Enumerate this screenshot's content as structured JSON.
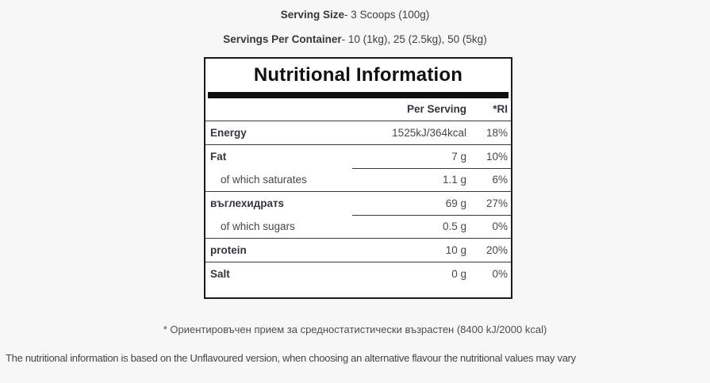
{
  "intro": {
    "serving_size_label": "Serving Size",
    "serving_size_value": "- 3 Scoops (100g)",
    "servings_per_container_label": "Servings Per Container",
    "servings_per_container_value": "- 10 (1kg), 25 (2.5kg), 50 (5kg)"
  },
  "table": {
    "title": "Nutritional Information",
    "columns": {
      "per_serving": "Per Serving",
      "ri": "*RI"
    },
    "rows": [
      {
        "label": "Energy",
        "per_serving": "1525kJ/364kcal",
        "ri": "18%",
        "bold": true,
        "sub": false
      },
      {
        "label": "Fat",
        "per_serving": "7 g",
        "ri": "10%",
        "bold": true,
        "sub": false
      },
      {
        "label": "of which saturates",
        "per_serving": "1.1 g",
        "ri": "6%",
        "bold": false,
        "sub": true
      },
      {
        "label": "въглехидратs",
        "per_serving": "69 g",
        "ri": "27%",
        "bold": true,
        "sub": false
      },
      {
        "label": "of which sugars",
        "per_serving": "0.5 g",
        "ri": "0%",
        "bold": false,
        "sub": true
      },
      {
        "label": "protein",
        "per_serving": "10 g",
        "ri": "20%",
        "bold": true,
        "sub": false
      },
      {
        "label": "Salt",
        "per_serving": "0 g",
        "ri": "0%",
        "bold": true,
        "sub": false
      }
    ]
  },
  "notes": {
    "reference_intake": "* Ориентировъчен прием за средностатистически възрастен (8400 kJ/2000 kcal)",
    "disclaimer": "The nutritional information is based on the Unflavoured version, when choosing an alternative flavour the nutritional values may vary"
  },
  "colors": {
    "page_background": "#f7f7f7",
    "table_background": "#ffffff",
    "table_border": "#191919",
    "header_bar": "#101010",
    "row_divider": "#3a3a3a",
    "text": "#3f3f3f"
  }
}
